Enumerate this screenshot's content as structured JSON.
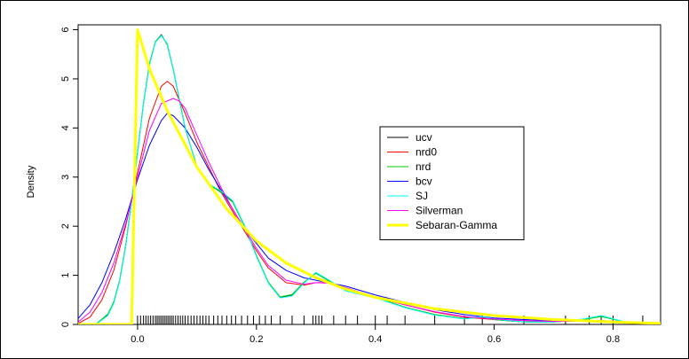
{
  "chart_data": {
    "type": "line",
    "title": "",
    "xlabel": "",
    "ylabel": "Density",
    "xlim": [
      -0.1,
      0.88
    ],
    "ylim": [
      0,
      6.1
    ],
    "x_ticks": [
      0.0,
      0.2,
      0.4,
      0.6,
      0.8
    ],
    "x_tick_labels": [
      "0.0",
      "0.2",
      "0.4",
      "0.6",
      "0.8"
    ],
    "y_ticks": [
      0,
      1,
      2,
      3,
      4,
      5,
      6
    ],
    "y_tick_labels": [
      "0",
      "1",
      "2",
      "3",
      "4",
      "5",
      "6"
    ],
    "grid": false,
    "legend_position": "center-right",
    "series": [
      {
        "name": "ucv",
        "color": "#000000",
        "x": [
          -0.1,
          -0.07,
          -0.05,
          -0.04,
          -0.03,
          -0.02,
          -0.01,
          0.0,
          0.01,
          0.02,
          0.03,
          0.04,
          0.05,
          0.06,
          0.08,
          0.1,
          0.12,
          0.14,
          0.16,
          0.18,
          0.2,
          0.22,
          0.24,
          0.26,
          0.28,
          0.3,
          0.32,
          0.35,
          0.4,
          0.45,
          0.5,
          0.55,
          0.58,
          0.6,
          0.65,
          0.7,
          0.75,
          0.78,
          0.82,
          0.88
        ],
        "y": [
          0.0,
          0.0,
          0.2,
          0.45,
          0.9,
          1.6,
          2.5,
          3.5,
          4.5,
          5.3,
          5.75,
          5.9,
          5.7,
          5.2,
          4.0,
          3.2,
          2.85,
          2.7,
          2.5,
          2.0,
          1.4,
          0.85,
          0.55,
          0.6,
          0.85,
          1.05,
          0.9,
          0.7,
          0.55,
          0.35,
          0.2,
          0.12,
          0.15,
          0.1,
          0.05,
          0.05,
          0.1,
          0.17,
          0.05,
          0.0
        ]
      },
      {
        "name": "nrd0",
        "color": "#ff0000",
        "x": [
          -0.1,
          -0.08,
          -0.06,
          -0.04,
          -0.02,
          0.0,
          0.02,
          0.04,
          0.05,
          0.06,
          0.08,
          0.1,
          0.12,
          0.14,
          0.16,
          0.18,
          0.2,
          0.22,
          0.25,
          0.28,
          0.3,
          0.32,
          0.35,
          0.4,
          0.45,
          0.5,
          0.55,
          0.6,
          0.65,
          0.7,
          0.75,
          0.78,
          0.82,
          0.88
        ],
        "y": [
          0.02,
          0.15,
          0.5,
          1.1,
          2.0,
          3.1,
          4.2,
          4.85,
          4.95,
          4.85,
          4.3,
          3.7,
          3.2,
          2.7,
          2.3,
          1.9,
          1.5,
          1.15,
          0.85,
          0.8,
          0.85,
          0.85,
          0.75,
          0.55,
          0.4,
          0.25,
          0.15,
          0.1,
          0.08,
          0.06,
          0.07,
          0.08,
          0.05,
          0.02
        ]
      },
      {
        "name": "nrd",
        "color": "#00cc00",
        "x": [
          -0.1,
          -0.07,
          -0.05,
          -0.04,
          -0.03,
          -0.02,
          -0.01,
          0.0,
          0.01,
          0.02,
          0.03,
          0.04,
          0.05,
          0.06,
          0.08,
          0.1,
          0.12,
          0.14,
          0.16,
          0.18,
          0.2,
          0.22,
          0.24,
          0.26,
          0.28,
          0.3,
          0.32,
          0.35,
          0.4,
          0.45,
          0.5,
          0.55,
          0.58,
          0.6,
          0.65,
          0.7,
          0.75,
          0.78,
          0.82,
          0.88
        ],
        "y": [
          0.0,
          0.01,
          0.21,
          0.46,
          0.91,
          1.61,
          2.51,
          3.51,
          4.51,
          5.31,
          5.76,
          5.89,
          5.69,
          5.19,
          4.0,
          3.2,
          2.85,
          2.69,
          2.49,
          2.0,
          1.4,
          0.86,
          0.56,
          0.61,
          0.86,
          1.04,
          0.9,
          0.7,
          0.55,
          0.35,
          0.2,
          0.12,
          0.14,
          0.1,
          0.05,
          0.05,
          0.1,
          0.16,
          0.05,
          0.0
        ]
      },
      {
        "name": "bcv",
        "color": "#0000ff",
        "x": [
          -0.1,
          -0.08,
          -0.06,
          -0.04,
          -0.02,
          0.0,
          0.02,
          0.04,
          0.05,
          0.06,
          0.08,
          0.1,
          0.12,
          0.14,
          0.16,
          0.18,
          0.2,
          0.22,
          0.25,
          0.28,
          0.3,
          0.32,
          0.35,
          0.4,
          0.45,
          0.5,
          0.55,
          0.6,
          0.65,
          0.7,
          0.75,
          0.8,
          0.88
        ],
        "y": [
          0.12,
          0.4,
          0.85,
          1.45,
          2.15,
          2.95,
          3.65,
          4.15,
          4.3,
          4.25,
          4.0,
          3.6,
          3.15,
          2.75,
          2.35,
          1.95,
          1.65,
          1.35,
          1.1,
          0.95,
          0.9,
          0.85,
          0.78,
          0.6,
          0.45,
          0.3,
          0.2,
          0.13,
          0.1,
          0.08,
          0.07,
          0.05,
          0.02
        ]
      },
      {
        "name": "SJ",
        "color": "#00ffff",
        "x": [
          -0.1,
          -0.07,
          -0.05,
          -0.04,
          -0.03,
          -0.02,
          -0.01,
          0.0,
          0.01,
          0.02,
          0.03,
          0.04,
          0.05,
          0.06,
          0.08,
          0.1,
          0.12,
          0.14,
          0.16,
          0.18,
          0.2,
          0.22,
          0.24,
          0.26,
          0.28,
          0.3,
          0.32,
          0.35,
          0.4,
          0.45,
          0.5,
          0.55,
          0.58,
          0.6,
          0.65,
          0.7,
          0.75,
          0.78,
          0.82,
          0.88
        ],
        "y": [
          0.0,
          0.0,
          0.18,
          0.43,
          0.88,
          1.58,
          2.48,
          3.48,
          4.48,
          5.28,
          5.74,
          5.88,
          5.72,
          5.21,
          4.02,
          3.18,
          2.86,
          2.72,
          2.52,
          2.02,
          1.38,
          0.84,
          0.54,
          0.58,
          0.84,
          1.06,
          0.92,
          0.68,
          0.54,
          0.34,
          0.19,
          0.11,
          0.16,
          0.11,
          0.05,
          0.05,
          0.11,
          0.18,
          0.05,
          0.0
        ]
      },
      {
        "name": "Silverman",
        "color": "#ff00ff",
        "x": [
          -0.1,
          -0.08,
          -0.06,
          -0.04,
          -0.02,
          0.0,
          0.02,
          0.04,
          0.06,
          0.07,
          0.08,
          0.1,
          0.12,
          0.14,
          0.16,
          0.18,
          0.2,
          0.22,
          0.25,
          0.28,
          0.3,
          0.32,
          0.35,
          0.4,
          0.45,
          0.5,
          0.55,
          0.6,
          0.65,
          0.7,
          0.75,
          0.78,
          0.82,
          0.88
        ],
        "y": [
          0.05,
          0.25,
          0.65,
          1.25,
          2.05,
          3.0,
          3.95,
          4.5,
          4.6,
          4.55,
          4.4,
          3.85,
          3.3,
          2.8,
          2.35,
          1.95,
          1.55,
          1.2,
          0.9,
          0.82,
          0.85,
          0.84,
          0.75,
          0.56,
          0.4,
          0.26,
          0.16,
          0.11,
          0.08,
          0.06,
          0.07,
          0.08,
          0.05,
          0.02
        ]
      },
      {
        "name": "Sebaran-Gamma",
        "color": "#ffff00",
        "x": [
          -0.1,
          -0.01,
          -0.005,
          0.0,
          0.005,
          0.02,
          0.05,
          0.1,
          0.15,
          0.2,
          0.25,
          0.3,
          0.35,
          0.4,
          0.5,
          0.6,
          0.7,
          0.8,
          0.88
        ],
        "y": [
          0.0,
          0.0,
          3.0,
          6.0,
          5.8,
          5.2,
          4.35,
          3.2,
          2.35,
          1.7,
          1.25,
          0.95,
          0.72,
          0.55,
          0.32,
          0.18,
          0.1,
          0.05,
          0.02
        ]
      }
    ],
    "rug": [
      0.0,
      0.005,
      0.01,
      0.014,
      0.018,
      0.022,
      0.026,
      0.03,
      0.033,
      0.036,
      0.039,
      0.042,
      0.045,
      0.048,
      0.051,
      0.054,
      0.057,
      0.06,
      0.064,
      0.068,
      0.072,
      0.076,
      0.08,
      0.085,
      0.09,
      0.095,
      0.1,
      0.105,
      0.11,
      0.115,
      0.12,
      0.128,
      0.135,
      0.142,
      0.15,
      0.158,
      0.165,
      0.175,
      0.185,
      0.195,
      0.205,
      0.215,
      0.225,
      0.24,
      0.26,
      0.28,
      0.295,
      0.3,
      0.305,
      0.31,
      0.33,
      0.35,
      0.37,
      0.4,
      0.42,
      0.45,
      0.5,
      0.55,
      0.58,
      0.65,
      0.72,
      0.76,
      0.78,
      0.8,
      0.85
    ]
  }
}
